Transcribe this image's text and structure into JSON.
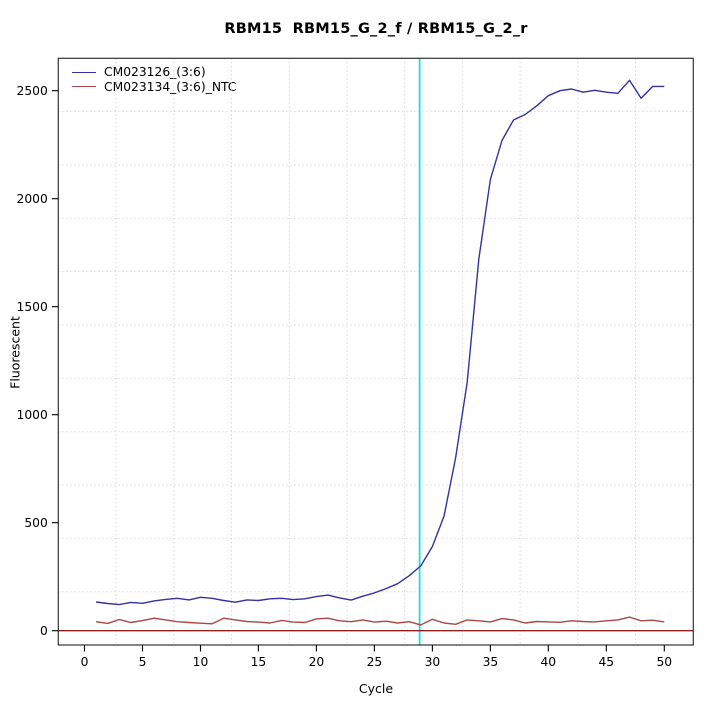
{
  "window": {
    "background": "#ffffff"
  },
  "chart_data": {
    "type": "line",
    "title": "RBM15  RBM15_G_2_f / RBM15_G_2_r",
    "xlabel": "Cycle",
    "ylabel": "Fluorescent",
    "x_ticks": [
      0,
      5,
      10,
      15,
      20,
      25,
      30,
      35,
      40,
      45,
      50
    ],
    "y_ticks": [
      0,
      500,
      1000,
      1500,
      2000,
      2500
    ],
    "xlim": [
      -2.26,
      52.5
    ],
    "ylim": [
      -66,
      2650
    ],
    "grid": {
      "color": "#c8c8c8",
      "style": "dotted",
      "nx": 11,
      "ny": 11
    },
    "threshold_line": {
      "x": 28.9,
      "color": "#00e5e5"
    },
    "baseline_line": {
      "y": 0,
      "color": "#8b2020"
    },
    "box_color": "#333333",
    "x": [
      1,
      2,
      3,
      4,
      5,
      6,
      7,
      8,
      9,
      10,
      11,
      12,
      13,
      14,
      15,
      16,
      17,
      18,
      19,
      20,
      21,
      22,
      23,
      24,
      25,
      26,
      27,
      28,
      29,
      30,
      31,
      32,
      33,
      34,
      35,
      36,
      37,
      38,
      39,
      40,
      41,
      42,
      43,
      44,
      45,
      46,
      47,
      48,
      49,
      50
    ],
    "series": [
      {
        "name": "CM023126_(3:6)",
        "color": "#3333a0",
        "values": [
          133,
          126,
          121,
          131,
          127,
          138,
          145,
          150,
          143,
          155,
          150,
          140,
          132,
          143,
          140,
          148,
          150,
          144,
          148,
          158,
          165,
          152,
          142,
          160,
          175,
          195,
          218,
          255,
          300,
          390,
          530,
          800,
          1150,
          1720,
          2090,
          2270,
          2365,
          2390,
          2430,
          2477,
          2500,
          2508,
          2493,
          2502,
          2493,
          2488,
          2548,
          2465,
          2520,
          2520
        ]
      },
      {
        "name": "CM023134_(3:6)_NTC",
        "color": "#a94848",
        "values": [
          42,
          34,
          52,
          38,
          47,
          58,
          50,
          42,
          38,
          35,
          32,
          58,
          50,
          43,
          40,
          36,
          48,
          40,
          38,
          55,
          58,
          46,
          42,
          50,
          40,
          44,
          36,
          42,
          27,
          53,
          36,
          30,
          50,
          46,
          41,
          56,
          50,
          36,
          43,
          41,
          39,
          46,
          43,
          41,
          46,
          50,
          63,
          46,
          49,
          41
        ]
      }
    ],
    "legend_position": "top-left"
  }
}
